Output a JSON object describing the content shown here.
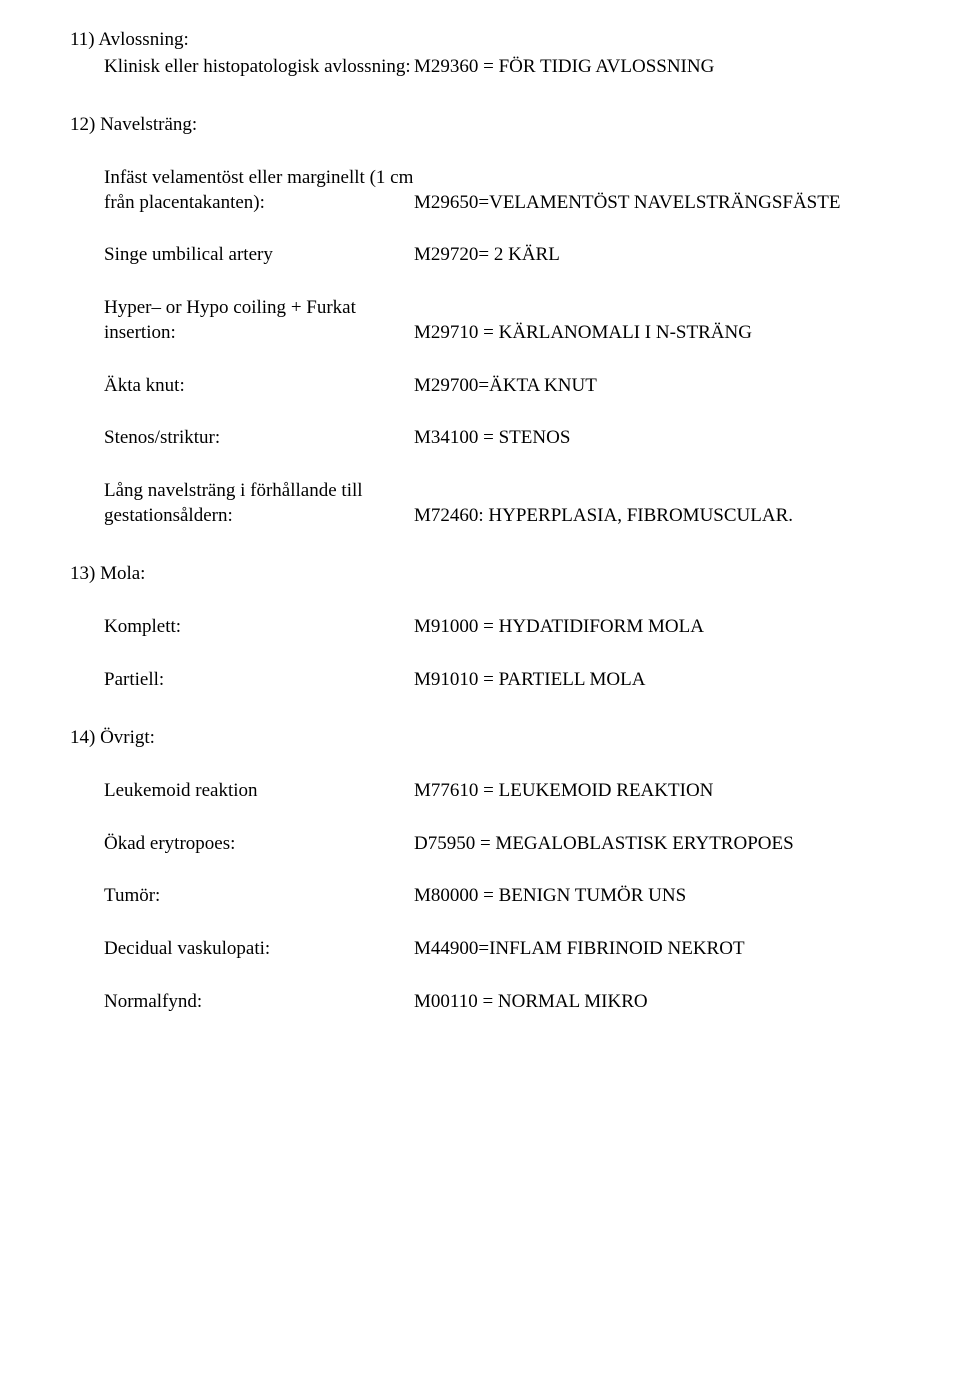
{
  "s11": {
    "number": "11) Avlossning:",
    "sub1": "Klinisk eller",
    "sub2": "histopatologisk",
    "sub3": "avlossning:",
    "value": "M29360 =  FÖR TIDIG AVLOSSNING"
  },
  "s12": {
    "number": "12) Navelsträng:",
    "e1": {
      "l1": "Infäst velamentöst eller",
      "l2": "marginellt (1 cm från",
      "l3": "placentakanten):",
      "value": "M29650=VELAMENTÖST NAVELSTRÄNGSFÄSTE"
    },
    "e2": {
      "label": "Singe umbilical artery",
      "value": "M29720= 2 KÄRL"
    },
    "e3": {
      "l1": "Hyper– or Hypo coiling",
      "l2": "+ Furkat insertion:",
      "value": "M29710 = KÄRLANOMALI I N-STRÄNG"
    },
    "e4": {
      "label": "Äkta knut:",
      "value": "M29700=ÄKTA KNUT"
    },
    "e5": {
      "label": "Stenos/striktur:",
      "value": "M34100 = STENOS"
    },
    "e6": {
      "l1": "Lång navelsträng i",
      "l2": "förhållande till",
      "l3": "gestationsåldern:",
      "value": "M72460: HYPERPLASIA, FIBROMUSCULAR."
    }
  },
  "s13": {
    "number": "13) Mola:",
    "e1": {
      "label": "Komplett:",
      "value": "M91000 = HYDATIDIFORM MOLA"
    },
    "e2": {
      "label": "Partiell:",
      "value": "M91010 = PARTIELL MOLA"
    }
  },
  "s14": {
    "number": "14) Övrigt:",
    "e1": {
      "label": "Leukemoid reaktion",
      "value": "M77610 = LEUKEMOID REAKTION"
    },
    "e2": {
      "label": "Ökad erytropoes:",
      "value": "D75950 = MEGALOBLASTISK ERYTROPOES"
    },
    "e3": {
      "label": "Tumör:",
      "value": "M80000 = BENIGN TUMÖR UNS"
    },
    "e4": {
      "label": "Decidual vaskulopati:",
      "value": "M44900=INFLAM FIBRINOID NEKROT"
    },
    "e5": {
      "label": "Normalfynd:",
      "value": "M00110 = NORMAL MIKRO"
    }
  }
}
